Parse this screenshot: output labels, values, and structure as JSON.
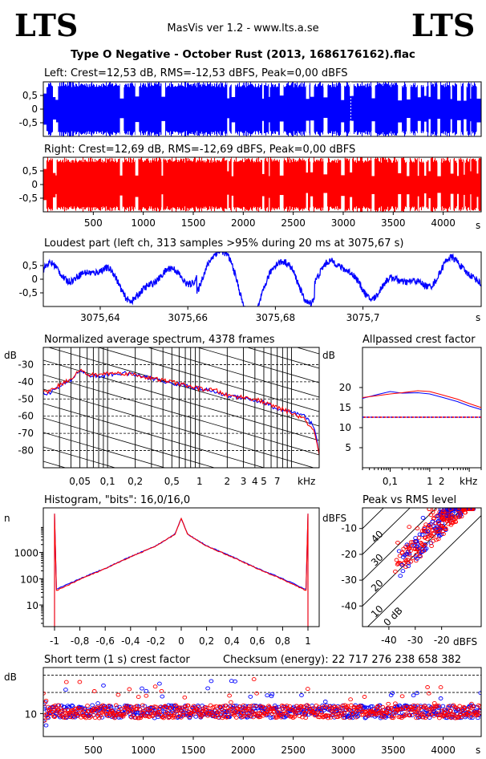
{
  "header": {
    "logo_left": "LTS",
    "logo_right": "LTS",
    "app": "MasVis ver 1.2 - www.lts.a.se",
    "file": "Type O Negative - October Rust (2013, 1686176162).flac"
  },
  "colors": {
    "left": "#0000ff",
    "right": "#ff0000",
    "axis": "#000000"
  },
  "chart_data": [
    {
      "id": "left_wave",
      "type": "area",
      "title": "Left: Crest=12,53 dB, RMS=-12,53 dBFS, Peak=0,00 dBFS",
      "crest_db": 12.53,
      "rms_dbfs": -12.53,
      "peak_dbfs": 0.0,
      "ylim": [
        -1,
        1
      ],
      "yticks": [
        "0,5",
        "0",
        "-0,5"
      ],
      "xlim": [
        0,
        4380
      ],
      "marker_x": 3075.67
    },
    {
      "id": "right_wave",
      "type": "area",
      "title": "Right: Crest=12,69 dB, RMS=-12,69 dBFS, Peak=0,00 dBFS",
      "crest_db": 12.69,
      "rms_dbfs": -12.69,
      "peak_dbfs": 0.0,
      "ylim": [
        -1,
        1
      ],
      "yticks": [
        "0,5",
        "0",
        "-0,5"
      ],
      "xlim": [
        0,
        4380
      ],
      "xticks": [
        "500",
        "1000",
        "1500",
        "2000",
        "2500",
        "3000",
        "3500",
        "4000"
      ],
      "xunit": "s"
    },
    {
      "id": "loudest",
      "type": "line",
      "title": "Loudest part (left  ch, 313 samples >95% during 20 ms at 3075,67 s)",
      "ylim": [
        -1,
        1
      ],
      "yticks": [
        "0,5",
        "0",
        "-0,5"
      ],
      "xlim": [
        3075.627,
        3075.727
      ],
      "xticks": [
        "3075,64",
        "3075,66",
        "3075,68",
        "3075,7"
      ],
      "xunit": "s"
    },
    {
      "id": "spectrum",
      "type": "line",
      "title": "Normalized average spectrum, 4378 frames",
      "ylabel": "dB",
      "xunit": "kHz",
      "yticks": [
        "-30",
        "-40",
        "-50",
        "-60",
        "-70",
        "-80"
      ],
      "xticks": [
        "0,05",
        "0,1",
        "0,2",
        "0,5",
        "1",
        "2",
        "3",
        "4",
        "5",
        "7"
      ],
      "x_khz": [
        0.022,
        0.03,
        0.04,
        0.05,
        0.06,
        0.08,
        0.1,
        0.15,
        0.2,
        0.3,
        0.5,
        0.7,
        1,
        1.5,
        2,
        3,
        4,
        5,
        7,
        10,
        14,
        18,
        20
      ],
      "series": [
        {
          "name": "Left",
          "values": [
            -47,
            -43,
            -39,
            -33,
            -36,
            -37,
            -36,
            -35,
            -36,
            -38,
            -41,
            -42,
            -44,
            -46,
            -48,
            -49,
            -51,
            -52,
            -56,
            -58,
            -60,
            -67,
            -82
          ]
        },
        {
          "name": "Right",
          "values": [
            -46,
            -42,
            -38,
            -33,
            -36,
            -36,
            -35,
            -35,
            -36,
            -38,
            -40,
            -42,
            -44,
            -45,
            -48,
            -49,
            -50,
            -52,
            -55,
            -58,
            -62,
            -70,
            -83
          ]
        }
      ]
    },
    {
      "id": "allpass",
      "type": "line",
      "title": "Allpassed crest factor",
      "ylabel": "dB",
      "xunit": "kHz",
      "yticks": [
        "20",
        "15",
        "10",
        "5"
      ],
      "xticks": [
        "0,1",
        "1",
        "2"
      ],
      "reference_db": 12.6,
      "x_khz": [
        0.02,
        0.05,
        0.1,
        0.2,
        0.5,
        1,
        2,
        5,
        10,
        20
      ],
      "series": [
        {
          "name": "Left",
          "values": [
            17.3,
            18.3,
            19.0,
            18.6,
            18.7,
            18.4,
            17.6,
            16.5,
            15.4,
            14.5
          ]
        },
        {
          "name": "Right",
          "values": [
            17.5,
            18.0,
            18.4,
            18.7,
            19.2,
            19.0,
            18.2,
            17.1,
            16.0,
            15.0
          ]
        }
      ]
    },
    {
      "id": "histogram",
      "type": "line",
      "title": "Histogram, \"bits\": 16,0/16,0",
      "ylabel": "n",
      "yticks": [
        "1000",
        "100",
        "10"
      ],
      "xticks": [
        "-1",
        "-0,8",
        "-0,6",
        "-0,4",
        "-0,2",
        "0",
        "0,2",
        "0,4",
        "0,6",
        "0,8",
        "1"
      ],
      "x": [
        -1,
        -0.98,
        -0.8,
        -0.6,
        -0.4,
        -0.2,
        -0.05,
        0,
        0.05,
        0.2,
        0.4,
        0.6,
        0.8,
        0.98,
        1
      ],
      "series": [
        {
          "name": "Left",
          "values": [
            30000,
            40,
            100,
            250,
            700,
            1800,
            5000,
            20000,
            5000,
            1800,
            700,
            250,
            100,
            40,
            30000
          ]
        },
        {
          "name": "Right",
          "values": [
            30000,
            36,
            95,
            240,
            680,
            1750,
            4900,
            20000,
            4900,
            1750,
            680,
            240,
            95,
            36,
            30000
          ]
        }
      ]
    },
    {
      "id": "peak_rms",
      "type": "scatter",
      "title": "Peak vs RMS level",
      "ylabel": "dBFS",
      "xunit": "dBFS",
      "yticks": [
        "-10",
        "-20",
        "-30",
        "-40"
      ],
      "xticks": [
        "-40",
        "-30",
        "-20"
      ],
      "diagonal_labels": [
        "40",
        "30",
        "20",
        "10",
        "0 dB"
      ],
      "xlim": [
        -50,
        -5
      ],
      "ylim": [
        -48,
        -2
      ]
    },
    {
      "id": "crest_st",
      "type": "scatter",
      "title": "Short term (1 s) crest factor",
      "checksum": "Checksum (energy):  22 717 276 238 658 382",
      "ylabel": "dB",
      "yticks": [
        "10"
      ],
      "xticks": [
        "500",
        "1000",
        "1500",
        "2000",
        "2500",
        "3000",
        "3500",
        "4000"
      ],
      "xunit": "s",
      "xlim": [
        0,
        4380
      ]
    }
  ]
}
